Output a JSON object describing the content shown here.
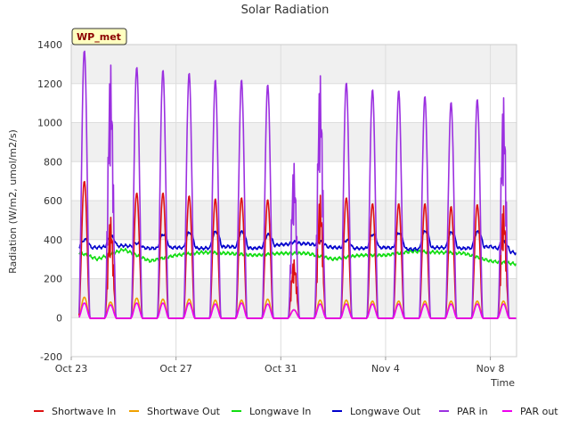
{
  "chart_data": {
    "type": "line",
    "title": "Solar Radiation",
    "xlabel": "Time",
    "ylabel": "Radiation (W/m2, umol/m2/s)",
    "badge": "WP_met",
    "ylim": [
      -200,
      1400
    ],
    "yticks": [
      -200,
      0,
      200,
      400,
      600,
      800,
      1000,
      1200,
      1400
    ],
    "xlim": [
      0,
      17.0
    ],
    "xticks": [
      {
        "label": "Oct 23",
        "day": 0
      },
      {
        "label": "Oct 27",
        "day": 4
      },
      {
        "label": "Oct 31",
        "day": 8
      },
      {
        "label": "Nov 4",
        "day": 12
      },
      {
        "label": "Nov 8",
        "day": 16
      }
    ],
    "grid": true,
    "legend_position": "bottom",
    "day_range": [
      0.3,
      17.0
    ],
    "series": [
      {
        "name": "Shortwave In",
        "color": "#dd1111",
        "type": "diurnal",
        "peaks": [
          700,
          520,
          640,
          640,
          625,
          610,
          615,
          605,
          300,
          635,
          615,
          585,
          585,
          585,
          570,
          580,
          580
        ]
      },
      {
        "name": "Shortwave Out",
        "color": "#f0a000",
        "type": "diurnal",
        "peaks": [
          105,
          80,
          100,
          95,
          95,
          90,
          90,
          95,
          40,
          90,
          90,
          85,
          85,
          85,
          85,
          85,
          85
        ]
      },
      {
        "name": "Longwave In",
        "color": "#11dd11",
        "type": "baseline",
        "values": [
          350,
          300,
          350,
          290,
          320,
          335,
          330,
          320,
          330,
          330,
          300,
          320,
          320,
          340,
          335,
          330,
          290,
          275
        ]
      },
      {
        "name": "Longwave Out",
        "color": "#0000cc",
        "type": "baseline",
        "values": [
          360,
          360,
          370,
          355,
          360,
          355,
          365,
          355,
          375,
          380,
          360,
          355,
          360,
          350,
          360,
          355,
          365,
          330
        ],
        "day_amplitude": [
          40,
          50,
          20,
          70,
          80,
          80,
          80,
          60,
          10,
          20,
          40,
          70,
          80,
          90,
          80,
          80,
          40,
          10
        ]
      },
      {
        "name": "PAR in",
        "color": "#9b30e0",
        "type": "diurnal",
        "peaks": [
          1370,
          1310,
          1285,
          1270,
          1255,
          1220,
          1220,
          1195,
          800,
          1255,
          1205,
          1170,
          1165,
          1135,
          1105,
          1120,
          1140
        ]
      },
      {
        "name": "PAR out",
        "color": "#ee00ee",
        "type": "diurnal",
        "peaks": [
          75,
          65,
          75,
          75,
          75,
          70,
          75,
          70,
          40,
          70,
          70,
          70,
          70,
          70,
          70,
          70,
          70
        ]
      }
    ]
  }
}
